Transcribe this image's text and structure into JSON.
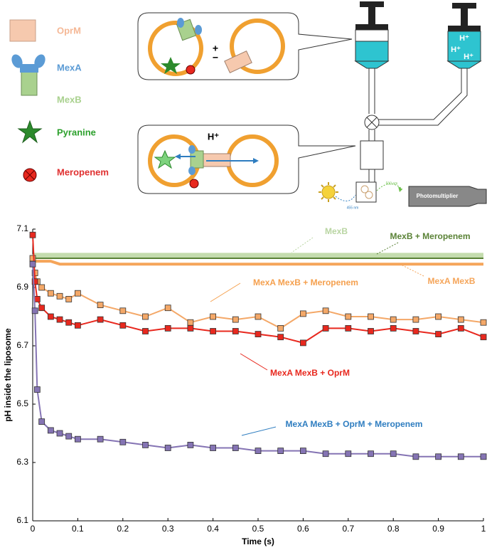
{
  "diagram": {
    "legend": [
      "OprM",
      "MexA",
      "MexB",
      "Pyranine",
      "Meropenem"
    ],
    "plus": "+",
    "minus": "−",
    "proton": "H⁺",
    "syringe_labels": [
      "H⁺",
      "H⁺",
      "H⁺"
    ],
    "photomultiplier": "Photomultiplier",
    "excitation": "455 nm",
    "emission": "500 nm"
  },
  "chart_data": {
    "type": "scatter",
    "xlabel": "Time (s)",
    "ylabel": "pH inside the liposome",
    "x": [
      0,
      0.005,
      0.01,
      0.02,
      0.04,
      0.06,
      0.08,
      0.1,
      0.15,
      0.2,
      0.25,
      0.3,
      0.35,
      0.4,
      0.45,
      0.5,
      0.55,
      0.6,
      0.65,
      0.7,
      0.75,
      0.8,
      0.85,
      0.9,
      0.95,
      1
    ],
    "xlim": [
      0,
      1
    ],
    "xticks": [
      0,
      0.1,
      0.2,
      0.3,
      0.4,
      0.5,
      0.6,
      0.7,
      0.8,
      0.9,
      1
    ],
    "ylim": [
      6.1,
      7.1
    ],
    "yticks": [
      6.1,
      6.3,
      6.5,
      6.7,
      6.9,
      7.1
    ],
    "series": [
      {
        "name": "MexB",
        "color": "#c4dcae",
        "label_color": "#b9d5a2",
        "marker": "none",
        "values": [
          7.0,
          7.01,
          7.01,
          7.01,
          7.01,
          7.01,
          7.01,
          7.01,
          7.01,
          7.01,
          7.01,
          7.01,
          7.01,
          7.01,
          7.01,
          7.01,
          7.01,
          7.01,
          7.01,
          7.01,
          7.01,
          7.01,
          7.01,
          7.01,
          7.01,
          7.01
        ]
      },
      {
        "name": "MexB + Meropenem",
        "color": "#5a8236",
        "label_color": "#5a8236",
        "marker": "none",
        "values": [
          7.0,
          7.0,
          7.0,
          7.0,
          7.0,
          7.0,
          7.0,
          7.0,
          7.0,
          7.0,
          7.0,
          7.0,
          7.0,
          7.0,
          7.0,
          7.0,
          7.0,
          7.0,
          7.0,
          7.0,
          7.0,
          7.0,
          7.0,
          7.0,
          7.0,
          7.0
        ]
      },
      {
        "name": "MexA MexB",
        "color": "#f5a55a",
        "label_color": "#f5a55a",
        "marker": "none",
        "values": [
          7.0,
          6.99,
          6.99,
          6.99,
          6.99,
          6.98,
          6.98,
          6.98,
          6.98,
          6.98,
          6.98,
          6.98,
          6.98,
          6.98,
          6.98,
          6.98,
          6.98,
          6.98,
          6.98,
          6.98,
          6.98,
          6.98,
          6.98,
          6.98,
          6.98,
          6.98
        ]
      },
      {
        "name": "MexA MexB + Meropenem",
        "color": "#f4a868",
        "label_color": "#f5a04e",
        "marker": "square",
        "values": [
          7.0,
          6.95,
          6.92,
          6.9,
          6.88,
          6.87,
          6.86,
          6.88,
          6.84,
          6.82,
          6.8,
          6.83,
          6.78,
          6.8,
          6.79,
          6.8,
          6.76,
          6.81,
          6.82,
          6.8,
          6.8,
          6.79,
          6.79,
          6.8,
          6.79,
          6.78
        ]
      },
      {
        "name": "MexA MexB + OprM",
        "color": "#e8281e",
        "label_color": "#e8281e",
        "marker": "square",
        "values": [
          7.08,
          6.92,
          6.86,
          6.83,
          6.8,
          6.79,
          6.78,
          6.77,
          6.79,
          6.77,
          6.75,
          6.76,
          6.76,
          6.75,
          6.75,
          6.74,
          6.73,
          6.71,
          6.76,
          6.76,
          6.75,
          6.76,
          6.75,
          6.74,
          6.76,
          6.73
        ]
      },
      {
        "name": "MexA MexB + OprM + Meropenem",
        "color": "#8574b4",
        "label_color": "#2e7dc0",
        "marker": "square",
        "values": [
          6.98,
          6.82,
          6.55,
          6.44,
          6.41,
          6.4,
          6.39,
          6.38,
          6.38,
          6.37,
          6.36,
          6.35,
          6.36,
          6.35,
          6.35,
          6.34,
          6.34,
          6.34,
          6.33,
          6.33,
          6.33,
          6.33,
          6.32,
          6.32,
          6.32,
          6.32
        ]
      }
    ]
  }
}
